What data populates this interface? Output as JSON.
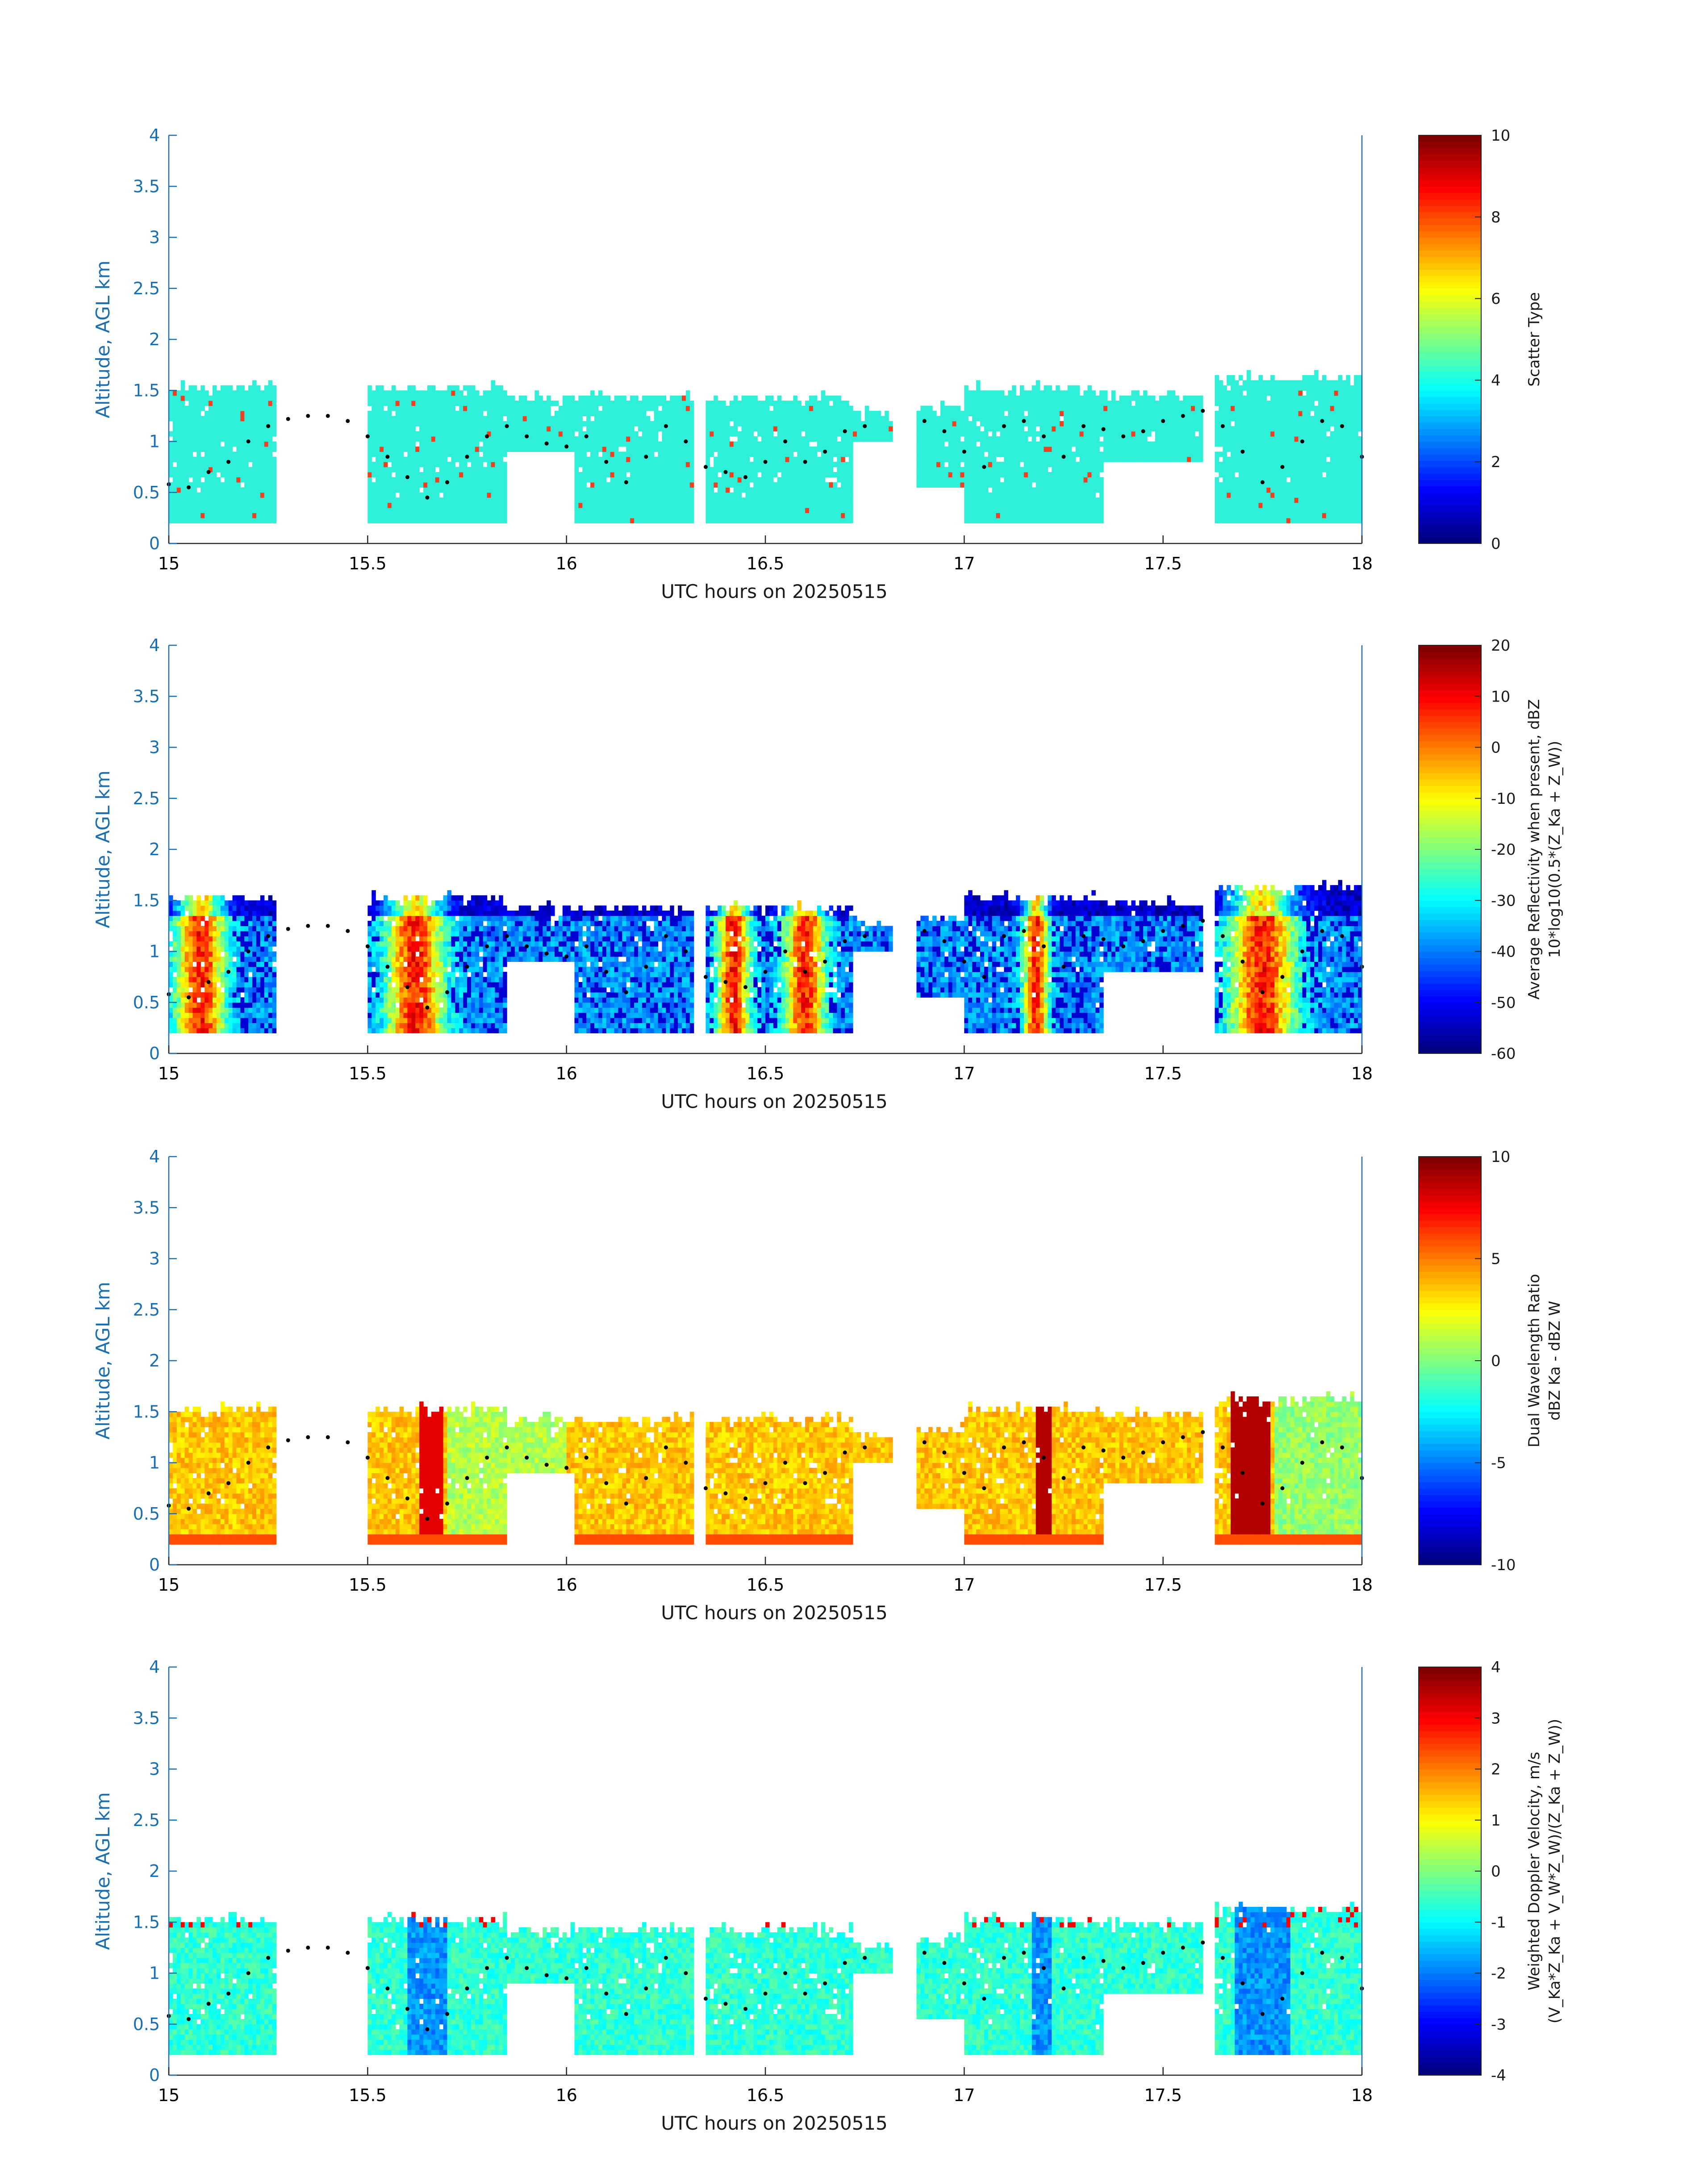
{
  "chart_data": [
    {
      "type": "heatmap",
      "variable": "scatter_type",
      "xlabel": "UTC hours on 20250515",
      "ylabel": "Altitude, AGL km",
      "xlim": [
        15,
        18
      ],
      "ylim": [
        0,
        4
      ],
      "xticks": [
        "15",
        "15.5",
        "16",
        "16.5",
        "17",
        "17.5",
        "18"
      ],
      "yticks": [
        "0",
        "0.5",
        "1",
        "1.5",
        "2",
        "2.5",
        "3",
        "3.5",
        "4"
      ],
      "colorbar": {
        "label_lines": [
          "Scatter Type"
        ],
        "range": [
          0,
          10
        ],
        "ticks": [
          "0",
          "2",
          "4",
          "6",
          "8",
          "10"
        ]
      },
      "colormap": "jet"
    },
    {
      "type": "heatmap",
      "variable": "average_reflectivity",
      "xlabel": "UTC hours on 20250515",
      "ylabel": "Altitude, AGL km",
      "xlim": [
        15,
        18
      ],
      "ylim": [
        0,
        4
      ],
      "xticks": [
        "15",
        "15.5",
        "16",
        "16.5",
        "17",
        "17.5",
        "18"
      ],
      "yticks": [
        "0",
        "0.5",
        "1",
        "1.5",
        "2",
        "2.5",
        "3",
        "3.5",
        "4"
      ],
      "colorbar": {
        "label_lines": [
          "Average Reflectivity when present, dBZ",
          "10*log10(0.5*(Z_Ka + Z_W))"
        ],
        "range": [
          -60,
          20
        ],
        "ticks": [
          "-60",
          "-50",
          "-40",
          "-30",
          "-20",
          "-10",
          "0",
          "10",
          "20"
        ]
      },
      "colormap": "jet"
    },
    {
      "type": "heatmap",
      "variable": "dual_wavelength_ratio",
      "xlabel": "UTC hours on 20250515",
      "ylabel": "Altitude, AGL km",
      "xlim": [
        15,
        18
      ],
      "ylim": [
        0,
        4
      ],
      "xticks": [
        "15",
        "15.5",
        "16",
        "16.5",
        "17",
        "17.5",
        "18"
      ],
      "yticks": [
        "0",
        "0.5",
        "1",
        "1.5",
        "2",
        "2.5",
        "3",
        "3.5",
        "4"
      ],
      "colorbar": {
        "label_lines": [
          "Dual Wavelength Ratio",
          "dBZ Ka - dBZ W"
        ],
        "range": [
          -10,
          10
        ],
        "ticks": [
          "-10",
          "-5",
          "0",
          "5",
          "10"
        ]
      },
      "colormap": "jet"
    },
    {
      "type": "heatmap",
      "variable": "weighted_doppler_velocity",
      "xlabel": "UTC hours on 20250515",
      "ylabel": "Altitude, AGL km",
      "xlim": [
        15,
        18
      ],
      "ylim": [
        0,
        4
      ],
      "xticks": [
        "15",
        "15.5",
        "16",
        "16.5",
        "17",
        "17.5",
        "18"
      ],
      "yticks": [
        "0",
        "0.5",
        "1",
        "1.5",
        "2",
        "2.5",
        "3",
        "3.5",
        "4"
      ],
      "colorbar": {
        "label_lines": [
          "Weighted Doppler Velocity, m/s",
          "(V_Ka*Z_Ka + V_W*Z_W)/(Z_Ka + Z_W))"
        ],
        "range": [
          -4,
          4
        ],
        "ticks": [
          "-4",
          "-3",
          "-2",
          "-1",
          "0",
          "1",
          "2",
          "3",
          "4"
        ]
      },
      "colormap": "jet"
    }
  ],
  "colors": {
    "axis": "#1a6fb3",
    "scatter_fill": "#2ef0d8",
    "dots": "#000000"
  },
  "cloud_segments": [
    {
      "start": 15.0,
      "end": 15.27,
      "top": 1.5,
      "bottom": 0.2
    },
    {
      "start": 15.5,
      "end": 15.85,
      "top": 1.5,
      "bottom": 0.2
    },
    {
      "start": 15.85,
      "end": 16.02,
      "top": 1.4,
      "bottom": 0.9
    },
    {
      "start": 16.02,
      "end": 16.32,
      "top": 1.4,
      "bottom": 0.2
    },
    {
      "start": 16.35,
      "end": 16.72,
      "top": 1.4,
      "bottom": 0.2
    },
    {
      "start": 16.72,
      "end": 16.82,
      "top": 1.25,
      "bottom": 1.0
    },
    {
      "start": 16.88,
      "end": 17.0,
      "top": 1.3,
      "bottom": 0.55
    },
    {
      "start": 17.0,
      "end": 17.35,
      "top": 1.5,
      "bottom": 0.2
    },
    {
      "start": 17.35,
      "end": 17.6,
      "top": 1.45,
      "bottom": 0.8
    },
    {
      "start": 17.63,
      "end": 18.0,
      "top": 1.6,
      "bottom": 0.2
    }
  ],
  "gaps": [
    [
      15.27,
      15.5
    ],
    [
      16.82,
      16.88
    ]
  ],
  "boundary_layer_dots": [
    [
      15.0,
      0.58
    ],
    [
      15.05,
      0.55
    ],
    [
      15.1,
      0.7
    ],
    [
      15.15,
      0.8
    ],
    [
      15.2,
      1.0
    ],
    [
      15.25,
      1.15
    ],
    [
      15.3,
      1.22
    ],
    [
      15.35,
      1.25
    ],
    [
      15.4,
      1.25
    ],
    [
      15.45,
      1.2
    ],
    [
      15.5,
      1.05
    ],
    [
      15.55,
      0.85
    ],
    [
      15.6,
      0.65
    ],
    [
      15.65,
      0.45
    ],
    [
      15.7,
      0.6
    ],
    [
      15.75,
      0.85
    ],
    [
      15.8,
      1.05
    ],
    [
      15.85,
      1.15
    ],
    [
      15.9,
      1.05
    ],
    [
      15.95,
      0.98
    ],
    [
      16.0,
      0.95
    ],
    [
      16.05,
      1.05
    ],
    [
      16.1,
      0.8
    ],
    [
      16.15,
      0.6
    ],
    [
      16.2,
      0.85
    ],
    [
      16.25,
      1.15
    ],
    [
      16.3,
      1.0
    ],
    [
      16.35,
      0.75
    ],
    [
      16.4,
      0.7
    ],
    [
      16.45,
      0.65
    ],
    [
      16.5,
      0.8
    ],
    [
      16.55,
      1.0
    ],
    [
      16.6,
      0.8
    ],
    [
      16.65,
      0.9
    ],
    [
      16.7,
      1.1
    ],
    [
      16.75,
      1.15
    ],
    [
      16.9,
      1.2
    ],
    [
      16.95,
      1.1
    ],
    [
      17.0,
      0.9
    ],
    [
      17.05,
      0.75
    ],
    [
      17.1,
      1.15
    ],
    [
      17.15,
      1.2
    ],
    [
      17.2,
      1.05
    ],
    [
      17.25,
      0.85
    ],
    [
      17.3,
      1.15
    ],
    [
      17.35,
      1.12
    ],
    [
      17.4,
      1.05
    ],
    [
      17.45,
      1.1
    ],
    [
      17.5,
      1.2
    ],
    [
      17.55,
      1.25
    ],
    [
      17.6,
      1.3
    ],
    [
      17.65,
      1.15
    ],
    [
      17.7,
      0.9
    ],
    [
      17.75,
      0.6
    ],
    [
      17.8,
      0.75
    ],
    [
      17.85,
      1.0
    ],
    [
      17.9,
      1.2
    ],
    [
      17.95,
      1.15
    ],
    [
      18.0,
      0.85
    ]
  ]
}
